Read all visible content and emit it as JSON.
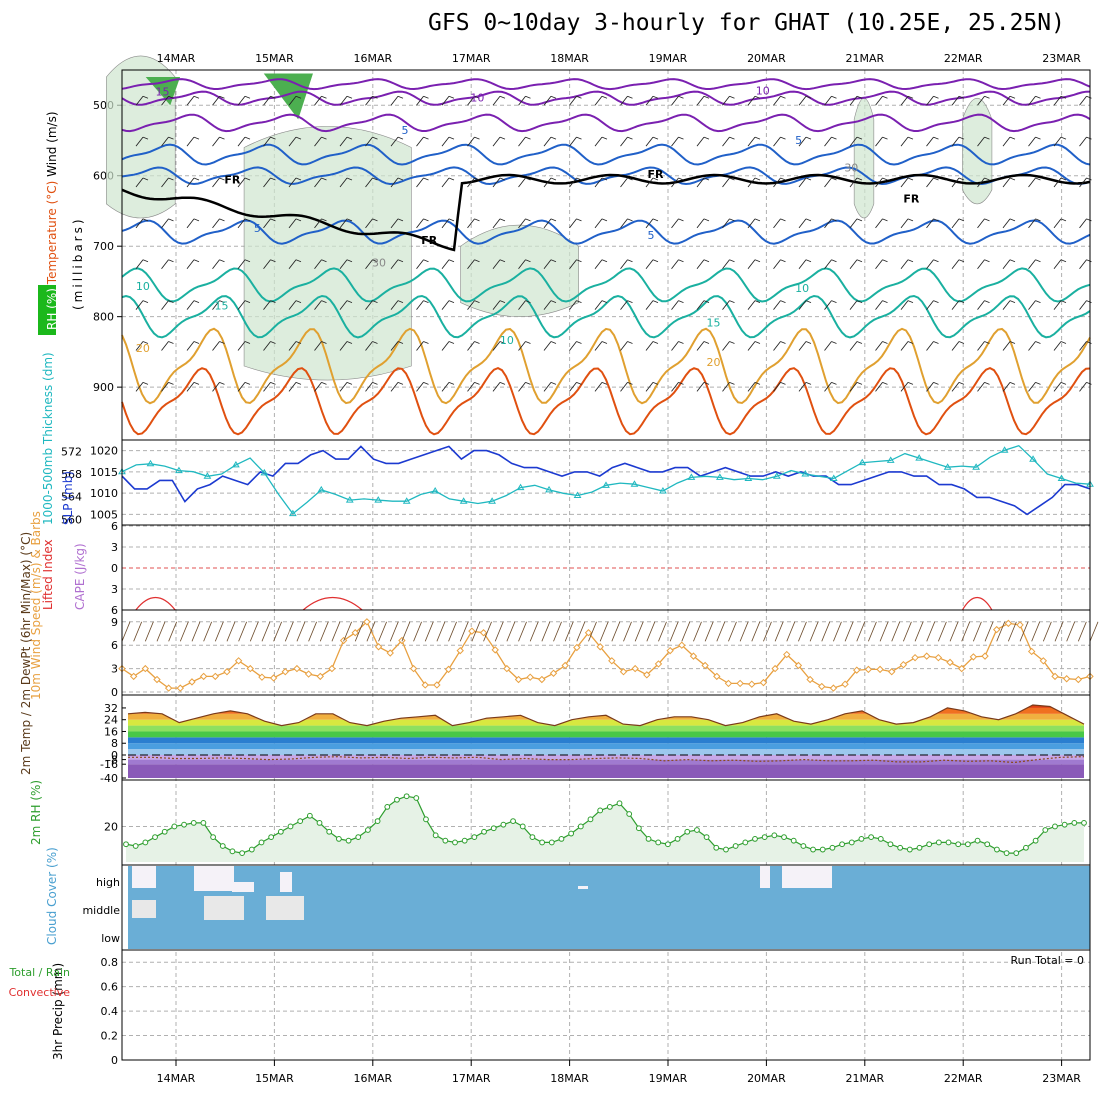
{
  "title": "GFS 0~10day 3-hourly for GHAT (10.25E, 25.25N)",
  "colors": {
    "wind_contour": "#7a20b0",
    "cold_contour": "#2060c8",
    "cool_contour": "#1ab0a0",
    "warm_contour": "#e0a030",
    "hot_contour": "#e05010",
    "freezing": "#000000",
    "rh_fill": "#cfe6cf",
    "rh_dark": "#4caf50",
    "slp": "#1c3ad0",
    "thickness": "#20b8c0",
    "wind10": "#e8a040",
    "rh2m": "#2e9e2e",
    "cloud": "#6aaed6",
    "lifted": "#e03030"
  },
  "chart_data": [
    {
      "panel": "upper-air",
      "type": "heatmap",
      "axis_title_parts": [
        "RH (%)",
        "Temperature (°C)",
        "Wind (m/s)"
      ],
      "ylabel": "(millibars)",
      "yticks": [
        500,
        600,
        700,
        800,
        900
      ],
      "ylim": [
        450,
        975
      ],
      "x_dates": [
        "14MAR",
        "15MAR",
        "16MAR",
        "17MAR",
        "18MAR",
        "19MAR",
        "20MAR",
        "21MAR",
        "22MAR",
        "23MAR"
      ],
      "contour_labels": [
        {
          "text": "15",
          "t": 0.3,
          "p": 486,
          "kind": "wind"
        },
        {
          "text": "10",
          "t": 3.5,
          "p": 495,
          "kind": "wind"
        },
        {
          "text": "10",
          "t": 6.4,
          "p": 485,
          "kind": "wind"
        },
        {
          "text": "5",
          "t": 2.8,
          "p": 541,
          "kind": "cold"
        },
        {
          "text": "5",
          "t": 6.8,
          "p": 555,
          "kind": "cold"
        },
        {
          "text": "FR",
          "t": 1.0,
          "p": 611,
          "kind": "freezing"
        },
        {
          "text": "FR",
          "t": 5.3,
          "p": 603,
          "kind": "freezing"
        },
        {
          "text": "FR",
          "t": 3.0,
          "p": 697,
          "kind": "freezing"
        },
        {
          "text": "FR",
          "t": 7.9,
          "p": 638,
          "kind": "freezing"
        },
        {
          "text": "5",
          "t": 1.3,
          "p": 680,
          "kind": "cold"
        },
        {
          "text": "5",
          "t": 5.3,
          "p": 690,
          "kind": "cold"
        },
        {
          "text": "10",
          "t": 0.1,
          "p": 762,
          "kind": "cool"
        },
        {
          "text": "10",
          "t": 6.8,
          "p": 765,
          "kind": "cool"
        },
        {
          "text": "10",
          "t": 3.8,
          "p": 839,
          "kind": "cool"
        },
        {
          "text": "15",
          "t": 0.9,
          "p": 790,
          "kind": "cool"
        },
        {
          "text": "15",
          "t": 5.9,
          "p": 814,
          "kind": "cool"
        },
        {
          "text": "20",
          "t": 0.1,
          "p": 850,
          "kind": "warm"
        },
        {
          "text": "20",
          "t": 5.9,
          "p": 870,
          "kind": "warm"
        },
        {
          "text": "30",
          "t": 2.5,
          "p": 729,
          "kind": "rh"
        },
        {
          "text": "30",
          "t": 7.3,
          "p": 594,
          "kind": "rh"
        }
      ]
    },
    {
      "panel": "slp-thickness",
      "type": "line",
      "ylabel_left": "1000-500mb Thickness (dm)",
      "ylabel_right": "SLP (mb)",
      "yticks_left": [
        560,
        564,
        568,
        572
      ],
      "yticks_right": [
        1005,
        1010,
        1015,
        1020
      ],
      "series": [
        {
          "name": "SLP",
          "values": [
            1014,
            1011,
            1011,
            1013,
            1013,
            1008,
            1011,
            1012,
            1014,
            1013,
            1012,
            1015,
            1014,
            1017,
            1017,
            1019,
            1020,
            1018,
            1018,
            1021,
            1018,
            1017,
            1017,
            1018,
            1019,
            1020,
            1021,
            1018,
            1020,
            1020,
            1019,
            1017,
            1016,
            1016,
            1015,
            1014,
            1015,
            1015,
            1014,
            1016,
            1017,
            1016,
            1015,
            1015,
            1016,
            1016,
            1014,
            1015,
            1016,
            1015,
            1014,
            1014,
            1015,
            1014,
            1015,
            1014,
            1014,
            1012,
            1012,
            1013,
            1014,
            1015,
            1015,
            1014,
            1014,
            1012,
            1012,
            1011,
            1009,
            1009,
            1008,
            1007,
            1005,
            1007,
            1009,
            1012,
            1012,
            1011
          ]
        },
        {
          "name": "Thickness",
          "values": [
            568.4,
            569.6,
            569.8,
            569.4,
            568.6,
            568.4,
            567.6,
            568.0,
            569.6,
            570.8,
            568.2,
            564.4,
            561.0,
            563.0,
            565.2,
            564.4,
            563.4,
            563.6,
            563.4,
            563.2,
            563.2,
            564.4,
            565.0,
            563.6,
            563.2,
            562.8,
            563.2,
            564.2,
            565.6,
            566.0,
            565.2,
            564.6,
            564.2,
            564.8,
            566.0,
            566.4,
            566.2,
            565.6,
            565.0,
            566.4,
            567.4,
            567.6,
            567.4,
            567.0,
            567.2,
            567.0,
            567.6,
            568.6,
            568.0,
            567.6,
            567.2,
            568.6,
            570.0,
            570.2,
            570.4,
            571.6,
            570.8,
            570.0,
            569.2,
            569.4,
            569.2,
            571.0,
            572.2,
            573.0,
            570.6,
            568.0,
            567.2,
            566.4,
            566.2
          ]
        }
      ]
    },
    {
      "panel": "stability",
      "type": "line",
      "ylabel_left": "Lifted Index",
      "ylabel_right": "CAPE (J/kg)",
      "yticks": [
        -6,
        -3,
        0,
        3,
        6
      ],
      "note": "Lifted Index mostly above +6 (stable) with brief dips near 14MAR, 15MAR, 21MAR and 22MAR"
    },
    {
      "panel": "wind10m",
      "type": "line",
      "ylabel": "10m Wind Speed (m/s) & Barbs",
      "yticks": [
        0,
        3,
        6,
        9
      ],
      "ylim": [
        0,
        10
      ],
      "series": [
        {
          "name": "10m Wind Speed",
          "values": [
            3.0,
            2.0,
            3.0,
            1.6,
            0.5,
            0.5,
            1.3,
            2.0,
            2.0,
            2.6,
            4.0,
            3.0,
            1.9,
            1.8,
            2.6,
            3.0,
            2.3,
            2.0,
            3.0,
            6.6,
            7.6,
            9.0,
            5.8,
            5.0,
            6.6,
            3.0,
            0.9,
            0.9,
            2.9,
            5.3,
            7.8,
            7.6,
            5.4,
            3.0,
            1.6,
            1.9,
            1.6,
            2.4,
            3.4,
            5.7,
            7.6,
            5.8,
            4.0,
            2.6,
            3.0,
            2.2,
            3.6,
            5.3,
            6.0,
            4.6,
            3.4,
            2.0,
            1.1,
            1.1,
            1.0,
            1.2,
            3.0,
            4.8,
            3.4,
            1.6,
            0.7,
            0.5,
            1.0,
            2.8,
            2.9,
            2.9,
            2.6,
            3.5,
            4.4,
            4.6,
            4.4,
            3.8,
            3.0,
            4.5,
            4.6,
            8.0,
            8.8,
            8.6,
            5.2,
            4.0,
            2.0,
            1.7,
            1.6,
            2.0
          ]
        }
      ]
    },
    {
      "panel": "temperature",
      "type": "area",
      "ylabel": "2m Temp / 2m DewPt (6hr Min/Max) (°C)",
      "yticks": [
        -40,
        -16,
        -8,
        0,
        8,
        16,
        24,
        32
      ],
      "series": [
        {
          "name": "2m Temp",
          "values": [
            28,
            29,
            28,
            22,
            25,
            28,
            30,
            28,
            23,
            20,
            22,
            28,
            28,
            22,
            20,
            23,
            25,
            26,
            27,
            20,
            22,
            25,
            26,
            27,
            22,
            20,
            24,
            26,
            27,
            21,
            20,
            24,
            26,
            26,
            24,
            20,
            22,
            26,
            28,
            23,
            21,
            24,
            28,
            30,
            24,
            21,
            22,
            26,
            32,
            30,
            26,
            24,
            28,
            34,
            33,
            27,
            21
          ]
        },
        {
          "name": "2m DewPt",
          "values": [
            -4,
            -4,
            -6,
            -6,
            -5,
            -6,
            -8,
            -7,
            -4,
            -3,
            -5,
            -4,
            -6,
            -4,
            -5,
            -4,
            -8,
            -6,
            -8,
            -8,
            -6,
            -5,
            -6,
            -10,
            -8,
            -10,
            -9,
            -11,
            -10,
            -8,
            -10,
            -10,
            -9,
            -12,
            -12,
            -9,
            -11,
            -10,
            -13,
            -8,
            -4,
            -3
          ]
        }
      ]
    },
    {
      "panel": "rh2m",
      "type": "area",
      "ylabel": "2m RH (%)",
      "yticks": [
        20
      ],
      "ylim": [
        0,
        45
      ],
      "series": [
        {
          "name": "2m RH",
          "values": [
            10,
            9,
            11,
            14,
            17,
            20,
            21,
            22,
            22,
            14,
            9,
            6,
            5,
            7,
            11,
            14,
            17,
            20,
            23,
            26,
            22,
            17,
            13,
            12,
            14,
            18,
            23,
            31,
            35,
            37,
            36,
            24,
            15,
            12,
            11,
            12,
            14,
            17,
            19,
            21,
            23,
            20,
            14,
            11,
            11,
            13,
            16,
            20,
            24,
            29,
            31,
            33,
            27,
            19,
            13,
            11,
            10,
            13,
            17,
            18,
            14,
            8,
            7,
            9,
            11,
            13,
            14,
            15,
            14,
            12,
            9,
            7,
            7,
            8,
            10,
            11,
            13,
            14,
            13,
            10,
            8,
            7,
            8,
            10,
            11,
            11,
            10,
            10,
            12,
            10,
            7,
            5,
            5,
            8,
            12,
            18,
            20,
            21,
            22,
            22
          ]
        }
      ]
    },
    {
      "panel": "cloud",
      "type": "heatmap",
      "ylabel": "Cloud Cover (%)",
      "layers": [
        "high",
        "middle",
        "low"
      ],
      "note": "Mostly clear; high cloud near 14MAR–15MAR and 20MAR; middle cloud near 14MAR–15MAR"
    },
    {
      "panel": "precip",
      "type": "bar",
      "ylabel_parts": [
        "Total / Rain",
        "Convective",
        "3hr Precip (mm)"
      ],
      "yticks": [
        0,
        0.2,
        0.4,
        0.6,
        0.8
      ],
      "ylim": [
        0,
        0.9
      ],
      "annotation": "Run Total = 0",
      "values": []
    }
  ]
}
